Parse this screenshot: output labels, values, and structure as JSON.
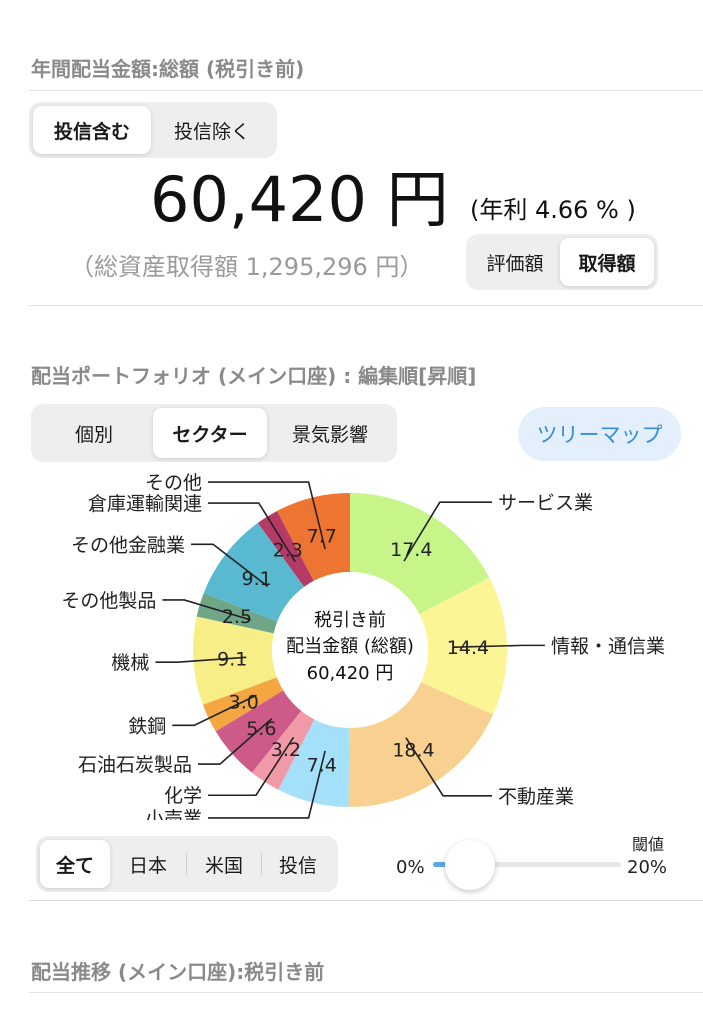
{
  "annual": {
    "title": "年間配当金額:総額 (税引き前)",
    "fund_toggle": [
      {
        "label": "投信含む",
        "active": true
      },
      {
        "label": "投信除く",
        "active": false
      }
    ],
    "amount": "60,420 円",
    "yield": "(年利 4.66 % )",
    "cost_basis": "（総資産取得額 1,295,296 円）",
    "valuation_toggle": [
      {
        "label": "評価額",
        "active": false
      },
      {
        "label": "取得額",
        "active": true
      }
    ]
  },
  "portfolio": {
    "title": "配当ポートフォリオ (メイン口座) : 編集順[昇順]",
    "view_toggle": [
      {
        "label": "個別",
        "active": false
      },
      {
        "label": "セクター",
        "active": true
      },
      {
        "label": "景気影響",
        "active": false
      }
    ],
    "treemap_label": "ツリーマップ",
    "center": {
      "line1": "税引き前",
      "line2": "配当金額 (総額)",
      "line3": "60,420 円"
    },
    "market_filter": [
      {
        "label": "全て",
        "active": true
      },
      {
        "label": "日本",
        "active": false
      },
      {
        "label": "米国",
        "active": false
      },
      {
        "label": "投信",
        "active": false
      }
    ],
    "threshold": {
      "label": "閾値",
      "min_label": "0%",
      "max_label": "20%",
      "value_fraction": 0.12
    }
  },
  "chart_data": {
    "type": "pie",
    "series": [
      {
        "name": "サービス業",
        "value": 17.4,
        "color": "#c7f58a"
      },
      {
        "name": "情報・通信業",
        "value": 14.4,
        "color": "#fbf596"
      },
      {
        "name": "不動産業",
        "value": 18.4,
        "color": "#f8d090"
      },
      {
        "name": "小売業",
        "value": 7.4,
        "color": "#a5e0fb"
      },
      {
        "name": "化学",
        "value": 3.2,
        "color": "#f09aa8"
      },
      {
        "name": "石油石炭製品",
        "value": 5.6,
        "color": "#cd5a88"
      },
      {
        "name": "鉄鋼",
        "value": 3.0,
        "color": "#f4a640"
      },
      {
        "name": "機械",
        "value": 9.1,
        "color": "#f8ee88"
      },
      {
        "name": "その他製品",
        "value": 2.5,
        "color": "#6fa688"
      },
      {
        "name": "その他金融業",
        "value": 9.1,
        "color": "#58b9d0"
      },
      {
        "name": "倉庫運輸関連",
        "value": 2.3,
        "color": "#b53a66"
      },
      {
        "name": "その他",
        "value": 7.7,
        "color": "#ee7531"
      }
    ]
  },
  "history": {
    "title": "配当推移 (メイン口座):税引き前"
  }
}
